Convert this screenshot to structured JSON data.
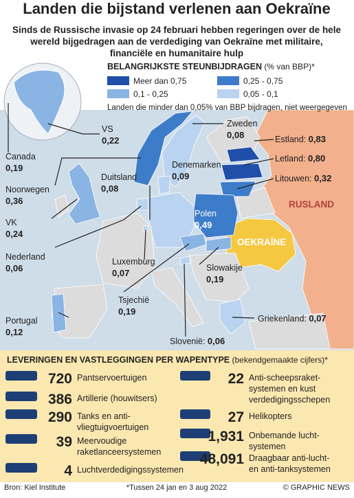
{
  "header": {
    "title": "Landen die bijstand verlenen aan Oekraïne",
    "subtitle": [
      "Sinds de Russische invasie op 24 februari hebben regeringen over de hele",
      "wereld bijgedragen aan de verdediging van Oekraïne met militaire,",
      "financiële en humanitaire hulp"
    ]
  },
  "legend": {
    "title": "Belangrijkste steunbijdragen",
    "unit": "(% van BBP)*",
    "items": [
      "Meer dan 0,75",
      "0,25 - 0,75",
      "0,1 - 0,25",
      "0,05 - 0,1"
    ],
    "note": "Landen die minder dan 0,05% van BBP bijdragen, niet weergegeven"
  },
  "countries": [
    {
      "name": "VS",
      "value": "0,22"
    },
    {
      "name": "Canada",
      "value": "0,19"
    },
    {
      "name": "Noorwegen",
      "value": "0,36"
    },
    {
      "name": "VK",
      "value": "0,24"
    },
    {
      "name": "Nederland",
      "value": "0,06"
    },
    {
      "name": "Portugal",
      "value": "0,12"
    },
    {
      "name": "Duitsland",
      "value": "0,08"
    },
    {
      "name": "Denemarken",
      "value": "0,09"
    },
    {
      "name": "Zweden",
      "value": "0,08"
    },
    {
      "name": "Estland:",
      "value": "0,83"
    },
    {
      "name": "Letland:",
      "value": "0,80"
    },
    {
      "name": "Litouwen:",
      "value": "0,32"
    },
    {
      "name": "Polen",
      "value": "0,49"
    },
    {
      "name": "Luxemburg",
      "value": "0,07"
    },
    {
      "name": "Slowakije",
      "value": "0,19"
    },
    {
      "name": "Tsjechië",
      "value": "0,19"
    },
    {
      "name": "Griekenland:",
      "value": "0,07"
    },
    {
      "name": "Slovenië:",
      "value": "0,06"
    }
  ],
  "regions": [
    "RUSLAND",
    "OEKRAÏNE"
  ],
  "weapons": {
    "title": "Leveringen en vastleggingen per wapentype",
    "subtitle": "(bekendgemaakte cijfers)*",
    "items": [
      {
        "count": "720",
        "label": [
          "Pantservoertuigen"
        ]
      },
      {
        "count": "386",
        "label": [
          "Artillerie (houwitsers)"
        ]
      },
      {
        "count": "290",
        "label": [
          "Tanks en anti-",
          "vliegtuigvoertuigen"
        ]
      },
      {
        "count": "39",
        "label": [
          "Meervoudige",
          "raketlanceersystemen"
        ]
      },
      {
        "count": "4",
        "label": [
          "Luchtverdedigingssystemen"
        ]
      },
      {
        "count": "22",
        "label": [
          "Anti-scheepsraket-",
          "systemen en kust",
          "verdedigingsschepen"
        ]
      },
      {
        "count": "27",
        "label": [
          "Helikopters"
        ]
      },
      {
        "count": "1,931",
        "label": [
          "Onbemande lucht-",
          "systemen"
        ]
      },
      {
        "count": "48,091",
        "label": [
          "Draagbaar anti-lucht-",
          "en anti-tanksystemen"
        ]
      }
    ]
  },
  "footer": {
    "source": "Bron: Kiel Institute",
    "note": "*Tussen 24 jan en 3 aug 2022",
    "credit": "© GRAPHIC NEWS"
  }
}
